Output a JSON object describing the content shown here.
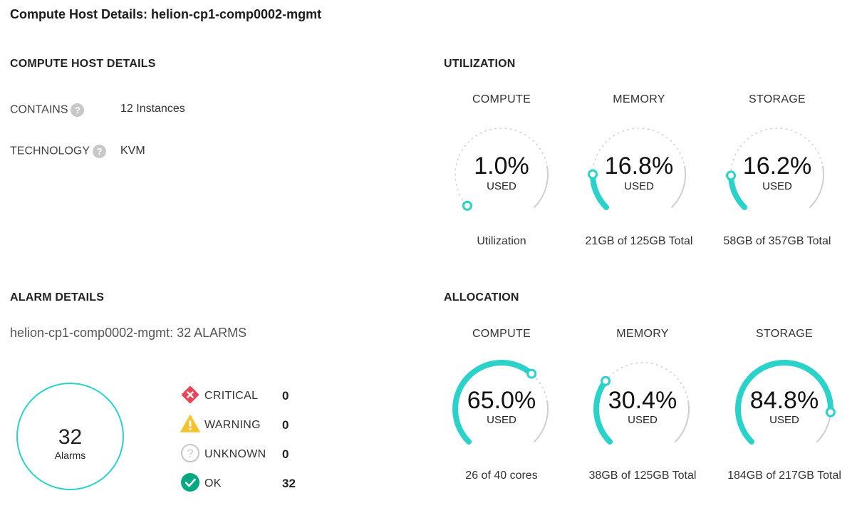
{
  "page_title": "Compute Host Details: helion-cp1-comp0002-mgmt",
  "host_details": {
    "title": "COMPUTE HOST DETAILS",
    "rows": [
      {
        "label": "CONTAINS",
        "value": "12 Instances"
      },
      {
        "label": "TECHNOLOGY",
        "value": "KVM"
      }
    ],
    "help_icon": "question-mark"
  },
  "alarm_details": {
    "title": "ALARM DETAILS",
    "summary": "helion-cp1-comp0002-mgmt: 32 ALARMS",
    "total": "32",
    "total_label": "Alarms",
    "statuses": [
      {
        "name": "CRITICAL",
        "count": "0",
        "icon": "critical-icon",
        "color": "#e8475a"
      },
      {
        "name": "WARNING",
        "count": "0",
        "icon": "warning-icon",
        "color": "#f5c330"
      },
      {
        "name": "UNKNOWN",
        "count": "0",
        "icon": "unknown-icon",
        "color": "#c6c6c6"
      },
      {
        "name": "OK",
        "count": "32",
        "icon": "ok-icon",
        "color": "#01a982"
      }
    ]
  },
  "utilization": {
    "title": "UTILIZATION",
    "gauges": [
      {
        "title": "COMPUTE",
        "percent": "1.0%",
        "value": 1.0,
        "used_label": "USED",
        "footer": "Utilization"
      },
      {
        "title": "MEMORY",
        "percent": "16.8%",
        "value": 16.8,
        "used_label": "USED",
        "footer": "21GB of 125GB Total"
      },
      {
        "title": "STORAGE",
        "percent": "16.2%",
        "value": 16.2,
        "used_label": "USED",
        "footer": "58GB of 357GB Total"
      }
    ]
  },
  "allocation": {
    "title": "ALLOCATION",
    "gauges": [
      {
        "title": "COMPUTE",
        "percent": "65.0%",
        "value": 65.0,
        "used_label": "USED",
        "footer": "26 of 40 cores"
      },
      {
        "title": "MEMORY",
        "percent": "30.4%",
        "value": 30.4,
        "used_label": "USED",
        "footer": "38GB of 125GB Total"
      },
      {
        "title": "STORAGE",
        "percent": "84.8%",
        "value": 84.8,
        "used_label": "USED",
        "footer": "184GB of 217GB Total"
      }
    ]
  },
  "colors": {
    "accent": "#2ad2c9",
    "track": "#cfcfcf"
  }
}
